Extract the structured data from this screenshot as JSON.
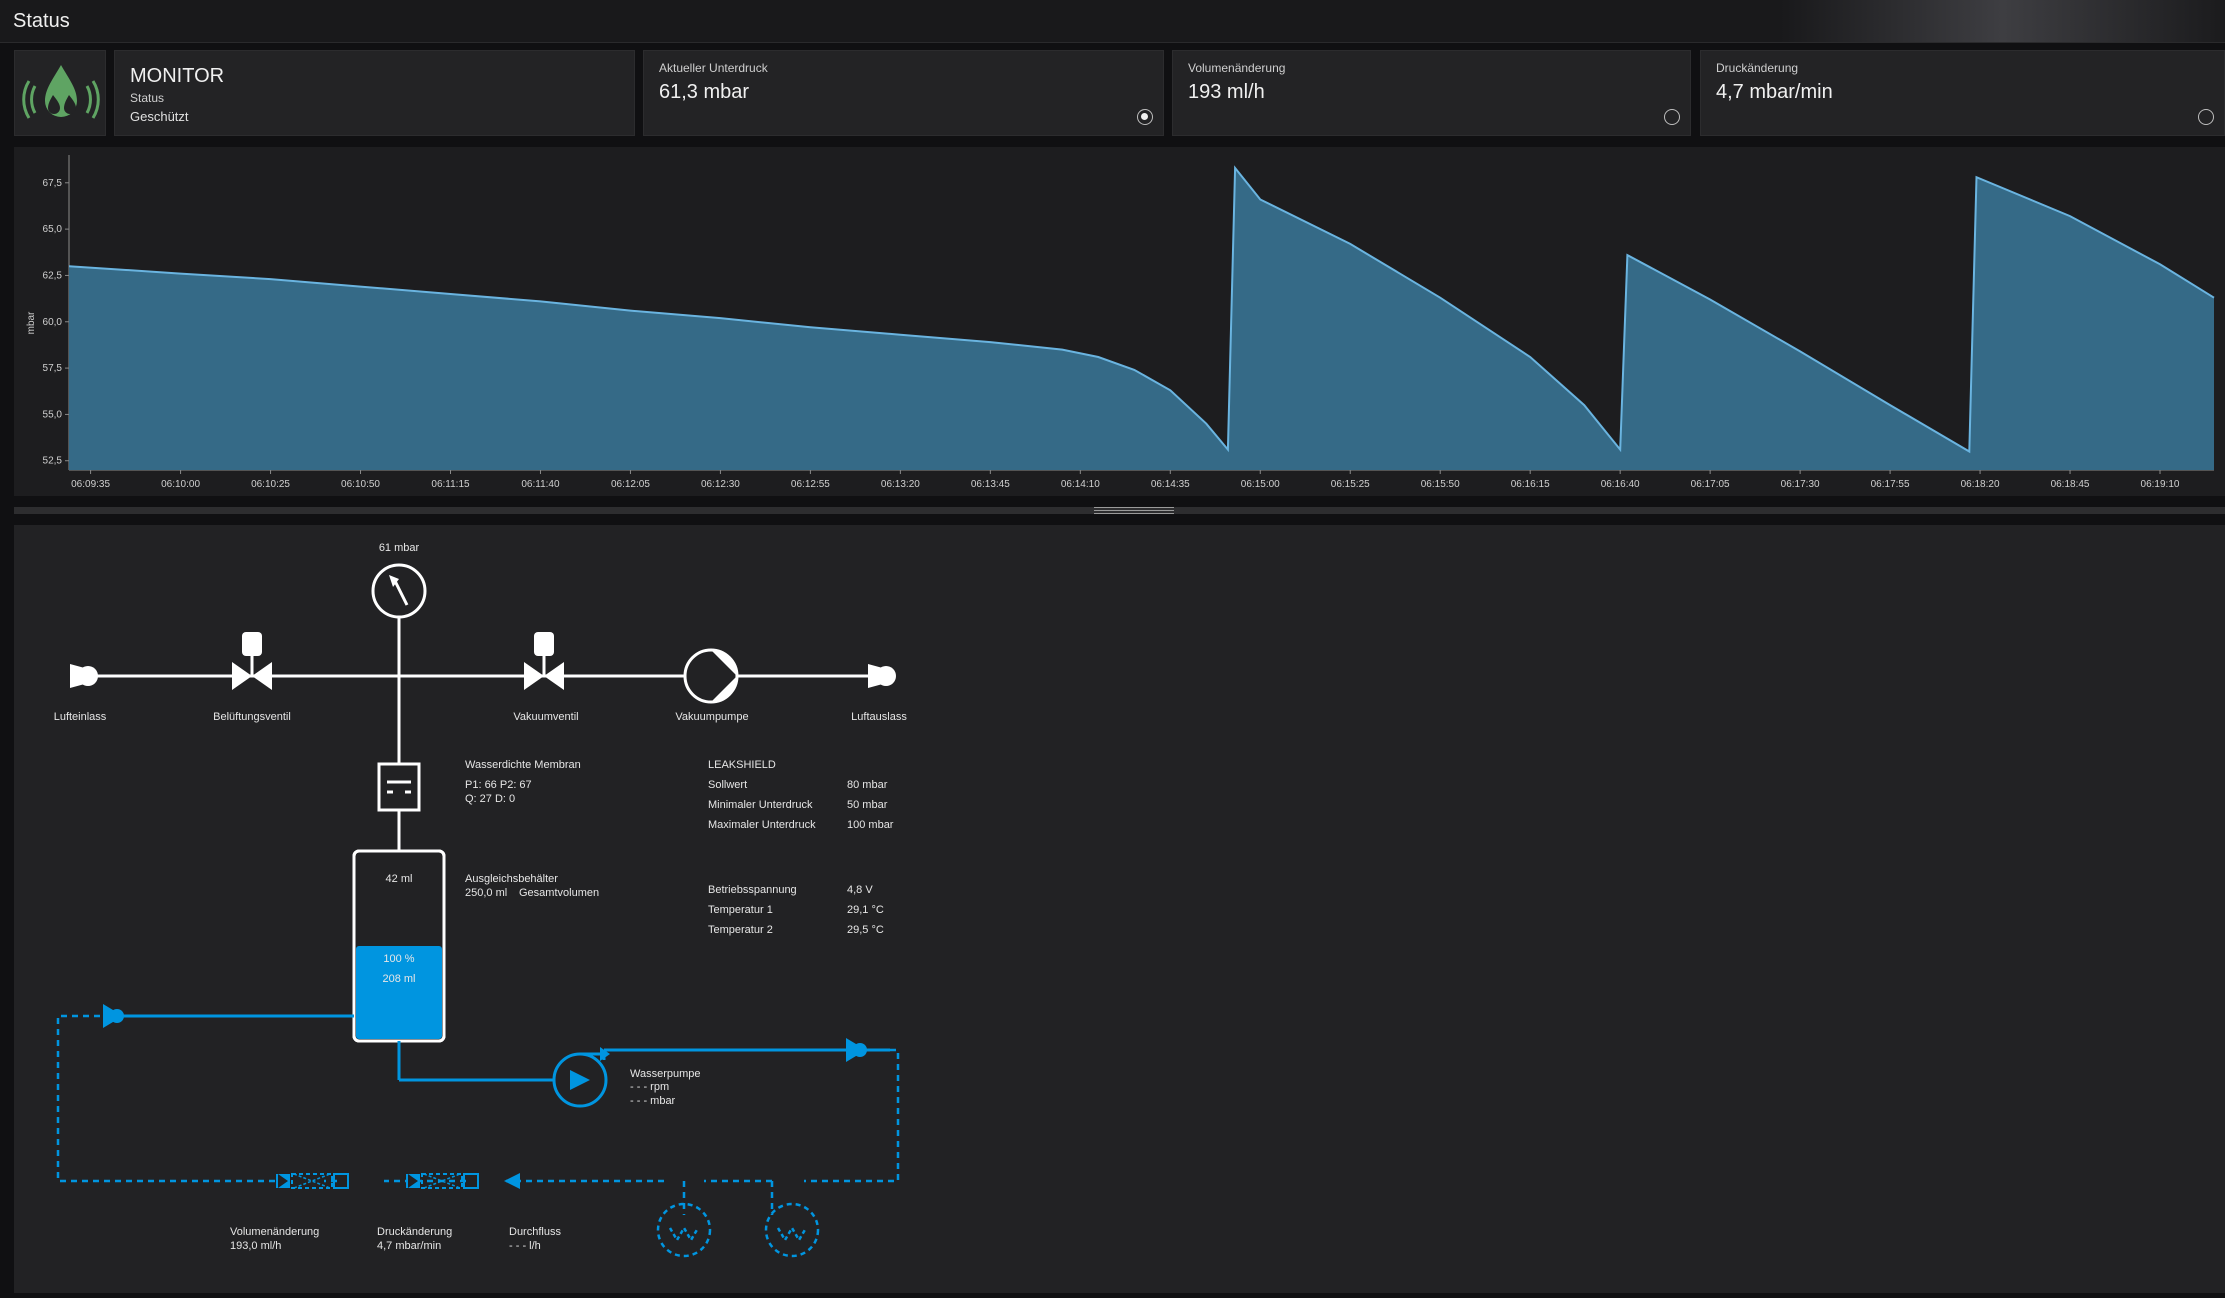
{
  "window": {
    "title": "Status"
  },
  "monitor_card": {
    "title": "MONITOR",
    "status_label": "Status",
    "status_value": "Geschützt",
    "icon": "leakshield-drop-icon"
  },
  "metric_cards": [
    {
      "label": "Aktueller Unterdruck",
      "value": "61,3 mbar",
      "selected": true
    },
    {
      "label": "Volumenänderung",
      "value": "193 ml/h",
      "selected": false
    },
    {
      "label": "Druckänderung",
      "value": "4,7 mbar/min",
      "selected": false
    }
  ],
  "chart_data": {
    "type": "area",
    "ylabel": "mbar",
    "ylim": [
      52,
      69
    ],
    "yticks": [
      "67,5",
      "65,0",
      "62,5",
      "60,0",
      "57,5",
      "55,0",
      "52,5"
    ],
    "ytick_values": [
      67.5,
      65.0,
      62.5,
      60.0,
      57.5,
      55.0,
      52.5
    ],
    "x_tick_labels": [
      "06:09:35",
      "06:10:00",
      "06:10:25",
      "06:10:50",
      "06:11:15",
      "06:11:40",
      "06:12:05",
      "06:12:30",
      "06:12:55",
      "06:13:20",
      "06:13:45",
      "06:14:10",
      "06:14:35",
      "06:15:00",
      "06:15:25",
      "06:15:50",
      "06:16:15",
      "06:16:40",
      "06:17:05",
      "06:17:30",
      "06:17:55",
      "06:18:20",
      "06:18:45",
      "06:19:10"
    ],
    "x_start": "06:09:29",
    "x_end": "06:19:25",
    "series": [
      {
        "values": [
          [
            "06:09:29",
            63.0
          ],
          [
            "06:10:00",
            62.6
          ],
          [
            "06:10:25",
            62.3
          ],
          [
            "06:10:50",
            61.9
          ],
          [
            "06:11:15",
            61.5
          ],
          [
            "06:11:40",
            61.1
          ],
          [
            "06:12:05",
            60.6
          ],
          [
            "06:12:30",
            60.2
          ],
          [
            "06:12:55",
            59.7
          ],
          [
            "06:13:20",
            59.3
          ],
          [
            "06:13:45",
            58.9
          ],
          [
            "06:14:05",
            58.5
          ],
          [
            "06:14:15",
            58.1
          ],
          [
            "06:14:25",
            57.4
          ],
          [
            "06:14:35",
            56.3
          ],
          [
            "06:14:45",
            54.5
          ],
          [
            "06:14:51",
            53.1
          ],
          [
            "06:14:53",
            68.3
          ],
          [
            "06:15:00",
            66.6
          ],
          [
            "06:15:25",
            64.2
          ],
          [
            "06:15:50",
            61.3
          ],
          [
            "06:16:15",
            58.1
          ],
          [
            "06:16:30",
            55.5
          ],
          [
            "06:16:40",
            53.1
          ],
          [
            "06:16:42",
            63.6
          ],
          [
            "06:17:05",
            61.2
          ],
          [
            "06:17:30",
            58.4
          ],
          [
            "06:17:55",
            55.5
          ],
          [
            "06:18:17",
            53.0
          ],
          [
            "06:18:19",
            67.8
          ],
          [
            "06:18:45",
            65.7
          ],
          [
            "06:19:10",
            63.1
          ],
          [
            "06:19:25",
            61.3
          ]
        ]
      }
    ]
  },
  "diagram": {
    "pressure_gauge_label": "61 mbar",
    "air_inlet": "Lufteinlass",
    "vent_valve": "Belüftungsventil",
    "vacuum_valve": "Vakuumventil",
    "vacuum_pump": "Vakuumpumpe",
    "air_outlet": "Luftauslass",
    "membrane": {
      "title": "Wasserdichte Membran",
      "line1": "P1: 66 P2: 67",
      "line2": "Q: 27 D: 0"
    },
    "reservoir": {
      "title": "Ausgleichsbehälter",
      "volume": "250,0 ml",
      "volume_label": "Gesamtvolumen",
      "air_volume": "42 ml",
      "fill_percent": "100 %",
      "fill_volume": "208 ml",
      "fill_level": 0.5
    },
    "leakshield": {
      "title": "LEAKSHIELD",
      "rows": [
        {
          "label": "Sollwert",
          "value": "80 mbar"
        },
        {
          "label": "Minimaler Unterdruck",
          "value": "50 mbar"
        },
        {
          "label": "Maximaler Unterdruck",
          "value": "100 mbar"
        }
      ],
      "rows2": [
        {
          "label": "Betriebsspannung",
          "value": "4,8 V"
        },
        {
          "label": "Temperatur 1",
          "value": "29,1 °C"
        },
        {
          "label": "Temperatur 2",
          "value": "29,5 °C"
        }
      ]
    },
    "water_pump": {
      "title": "Wasserpumpe",
      "rpm": "- - - rpm",
      "pressure": "- - - mbar"
    },
    "sensors": [
      {
        "title": "Volumenänderung",
        "value": "193,0 ml/h"
      },
      {
        "title": "Druckänderung",
        "value": "4,7 mbar/min"
      },
      {
        "title": "Durchfluss",
        "value": "- - - l/h"
      }
    ]
  },
  "colors": {
    "accent": "#0095e0",
    "chart_fill": "#356a87",
    "chart_line": "#6ab4e0",
    "card_bg": "#232325"
  }
}
